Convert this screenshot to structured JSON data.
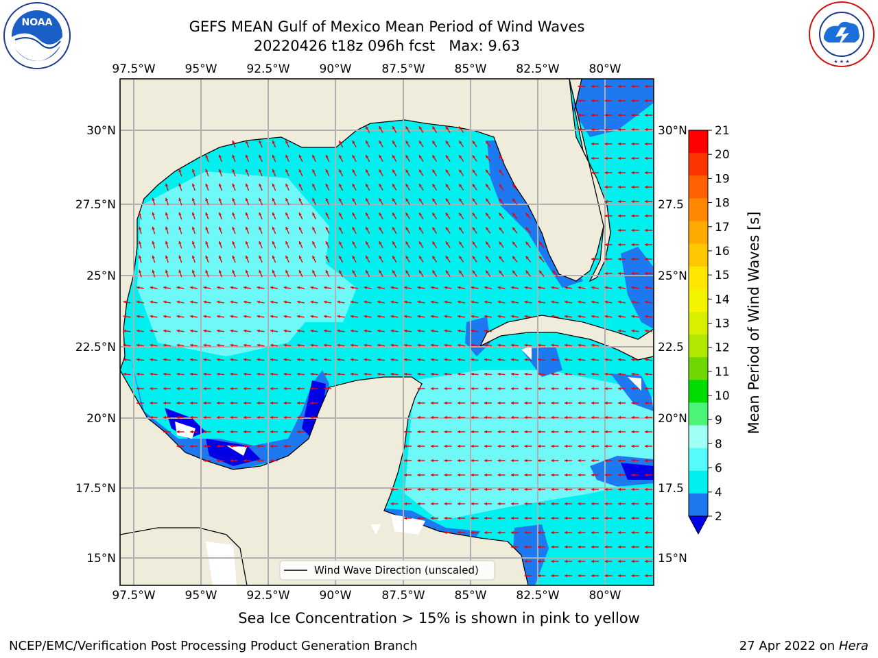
{
  "header": {
    "title_line1": "GEFS MEAN Gulf of Mexico Mean Period of Wind Waves",
    "title_line2": "20220426 t18z 096h fcst   Max: 9.63"
  },
  "map": {
    "lon_labels": [
      "97.5°W",
      "95°W",
      "92.5°W",
      "90°W",
      "87.5°W",
      "85°W",
      "82.5°W",
      "80°W"
    ],
    "lat_labels_left": [
      "30°N",
      "27.5°N",
      "25°N",
      "22.5°N",
      "20°N",
      "17.5°N",
      "15°N"
    ],
    "lat_labels_right": [
      "30°N",
      "27.5",
      "25°N",
      "22.5",
      "20°N",
      "17.5",
      "15°N"
    ],
    "legend_label": "Wind Wave Direction (unscaled)",
    "colors": {
      "land": "#efecdc",
      "cyan": "#00f0f0",
      "light_cyan": "#6ff8f8",
      "mid_blue": "#1e78f0",
      "deep_blue": "#0000e6",
      "arrow": "#ee0000",
      "coast": "#000000"
    }
  },
  "colorbar": {
    "label": "Mean Period of Wind Waves [s]",
    "ticks": [
      "21",
      "20",
      "19",
      "18",
      "17",
      "16",
      "15",
      "14",
      "13",
      "12",
      "11",
      "10",
      "9",
      "8",
      "6",
      "4",
      "2"
    ],
    "colors": [
      "#ff0000",
      "#ff3500",
      "#ff6000",
      "#ff8800",
      "#ffaa00",
      "#ffc800",
      "#ffe600",
      "#f4f400",
      "#d8f000",
      "#b0e800",
      "#6fd800",
      "#00dc00",
      "#4cf57a",
      "#a0fff4",
      "#55fbfb",
      "#00f0f0",
      "#1e78f0",
      "#0000e6"
    ]
  },
  "subtitle": "Sea Ice Concentration > 15% is shown in pink to yellow",
  "footer": {
    "left": "NCEP/EMC/Verification Post Processing Product Generation Branch",
    "right_date": "27 Apr 2022 on ",
    "right_host": "Hera"
  },
  "logos": {
    "noaa": "NOAA",
    "nws_ring": "NATIONAL WEATHER SERVICE",
    "noaa_ring": "NATIONAL OCEANIC AND ATMOSPHERIC ADMINISTRATION"
  }
}
